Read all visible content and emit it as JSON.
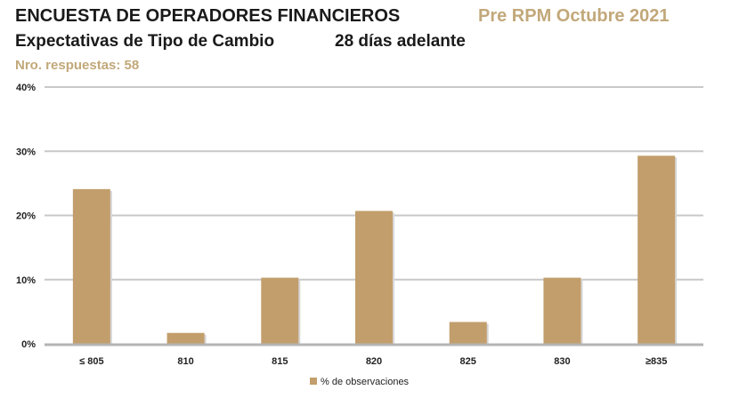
{
  "header": {
    "title": "ENCUESTA DE OPERADORES FINANCIEROS",
    "tag": "Pre RPM Octubre 2021",
    "subtitle": "Expectativas de Tipo de Cambio",
    "horizon": "28 días adelante",
    "responses": "Nro. respuestas: 58"
  },
  "colors": {
    "bar": "#c29e6c",
    "grid": "#c8c8c8",
    "axis": "#b4b4b4",
    "accent_text": "#c2a87a"
  },
  "chart_data": {
    "type": "bar",
    "categories": [
      "≤ 805",
      "810",
      "815",
      "820",
      "825",
      "830",
      "≥835"
    ],
    "series": [
      {
        "name": "% de observaciones",
        "values": [
          24.1,
          1.7,
          10.3,
          20.7,
          3.4,
          10.3,
          29.3
        ]
      }
    ],
    "ylim": [
      0,
      40
    ],
    "yticks": [
      "0%",
      "10%",
      "20%",
      "30%",
      "40%"
    ],
    "ytick_values": [
      0,
      10,
      20,
      30,
      40
    ],
    "grid": true,
    "legend_position": "bottom"
  }
}
